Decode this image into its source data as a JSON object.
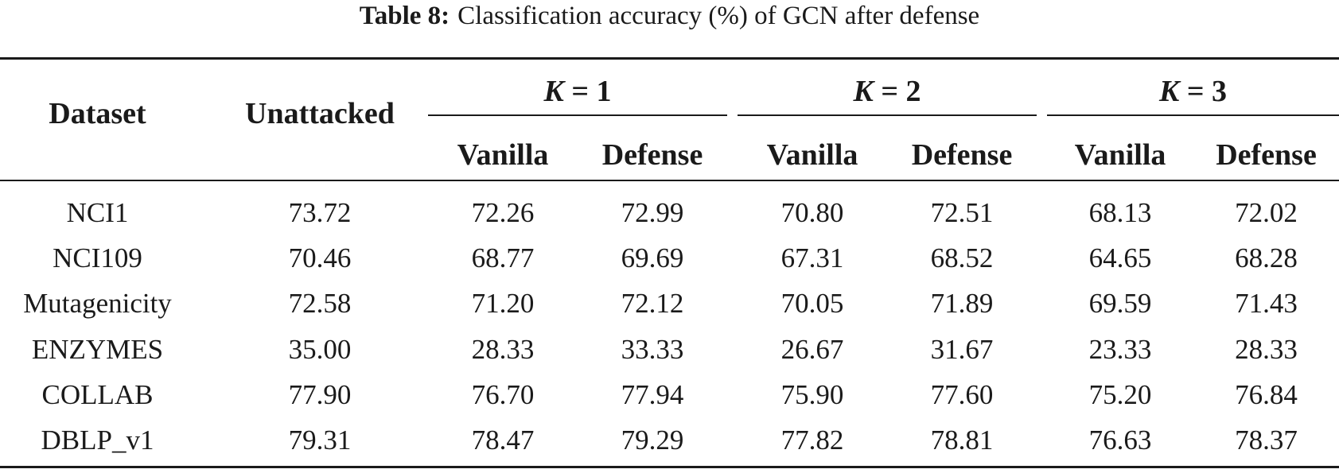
{
  "caption": {
    "label": "Table 8:",
    "text": "Classification accuracy (%) of GCN after defense"
  },
  "table": {
    "headers": {
      "dataset": "Dataset",
      "unattacked": "Unattacked",
      "k_groups": [
        {
          "var": "K",
          "eq": " = 1"
        },
        {
          "var": "K",
          "eq": " = 2"
        },
        {
          "var": "K",
          "eq": " = 3"
        }
      ],
      "sub": [
        "Vanilla",
        "Defense",
        "Vanilla",
        "Defense",
        "Vanilla",
        "Defense"
      ]
    },
    "rows": [
      {
        "dataset": "NCI1",
        "unattacked": "73.72",
        "values": [
          "72.26",
          "72.99",
          "70.80",
          "72.51",
          "68.13",
          "72.02"
        ]
      },
      {
        "dataset": "NCI109",
        "unattacked": "70.46",
        "values": [
          "68.77",
          "69.69",
          "67.31",
          "68.52",
          "64.65",
          "68.28"
        ]
      },
      {
        "dataset": "Mutagenicity",
        "unattacked": "72.58",
        "values": [
          "71.20",
          "72.12",
          "70.05",
          "71.89",
          "69.59",
          "71.43"
        ]
      },
      {
        "dataset": "ENZYMES",
        "unattacked": "35.00",
        "values": [
          "28.33",
          "33.33",
          "26.67",
          "31.67",
          "23.33",
          "28.33"
        ]
      },
      {
        "dataset": "COLLAB",
        "unattacked": "77.90",
        "values": [
          "76.70",
          "77.94",
          "75.90",
          "77.60",
          "75.20",
          "76.84"
        ]
      },
      {
        "dataset": "DBLP_v1",
        "unattacked": "79.31",
        "values": [
          "78.47",
          "79.29",
          "77.82",
          "78.81",
          "76.63",
          "78.37"
        ]
      }
    ]
  }
}
